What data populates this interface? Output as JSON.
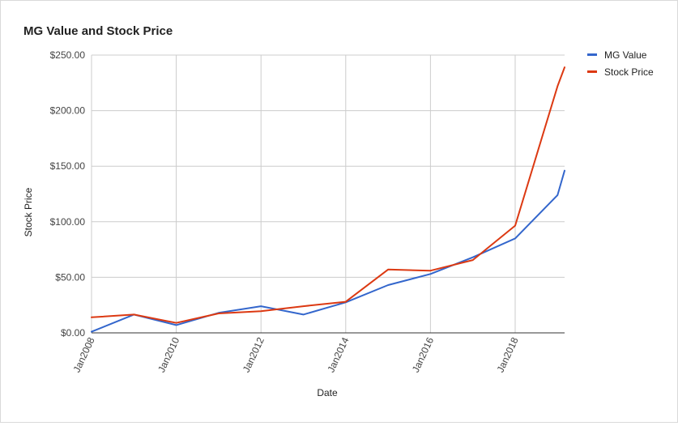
{
  "chart_data": {
    "type": "line",
    "title": "MG Value and Stock Price",
    "xlabel": "Date",
    "ylabel": "Stock Price",
    "x": [
      "2008-01",
      "2009-01",
      "2010-01",
      "2011-01",
      "2012-01",
      "2013-01",
      "2014-01",
      "2015-01",
      "2016-01",
      "2017-01",
      "2018-01",
      "2019-01",
      "2019-03"
    ],
    "x_range": [
      "2008-01",
      "2019-03"
    ],
    "x_ticks": [
      "Jan2008",
      "Jan2010",
      "Jan2012",
      "Jan2014",
      "Jan2016",
      "Jan2018"
    ],
    "x_tick_dates": [
      "2008-01",
      "2010-01",
      "2012-01",
      "2014-01",
      "2016-01",
      "2018-01"
    ],
    "ylim": [
      0,
      250
    ],
    "y_ticks": [
      "$250.00",
      "$200.00",
      "$150.00",
      "$100.00",
      "$50.00",
      "$0.00"
    ],
    "y_tick_values": [
      250,
      200,
      150,
      100,
      50,
      0
    ],
    "grid": true,
    "legend_position": "right",
    "series": [
      {
        "name": "MG Value",
        "color": "#3366cc",
        "values": [
          1,
          16.5,
          7,
          18,
          24,
          16.5,
          27.5,
          43,
          53,
          68,
          85,
          124,
          146
        ]
      },
      {
        "name": "Stock Price",
        "color": "#dc3912",
        "values": [
          14,
          16.5,
          9,
          17.5,
          19.5,
          24,
          28,
          57,
          56,
          65.5,
          96.5,
          222,
          239
        ]
      }
    ]
  }
}
